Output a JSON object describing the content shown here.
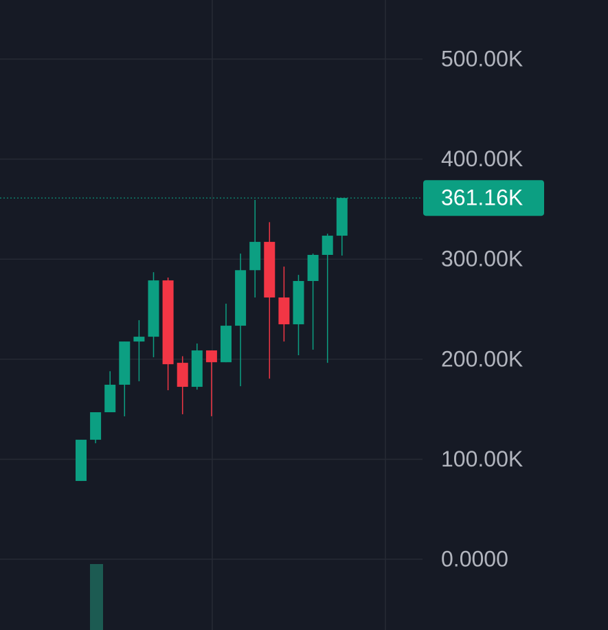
{
  "chart_data": {
    "type": "candlestick",
    "categories": [
      null,
      null,
      null,
      null,
      null,
      null,
      null,
      null,
      null,
      null,
      null,
      null,
      null,
      null,
      null,
      null,
      null,
      null,
      null
    ],
    "open": [
      78300,
      119500,
      147000,
      174500,
      217700,
      222500,
      278800,
      196400,
      172400,
      208800,
      197000,
      233500,
      289000,
      317300,
      261700,
      234900,
      278200,
      304300,
      323500
    ],
    "high": [
      119500,
      147000,
      188000,
      217700,
      239000,
      287000,
      281600,
      203000,
      215700,
      208800,
      255500,
      305600,
      359200,
      337000,
      292600,
      284300,
      305600,
      325500,
      361160
    ],
    "low": [
      78300,
      116000,
      147000,
      142900,
      178000,
      202000,
      169000,
      145000,
      169600,
      143000,
      197000,
      173000,
      261700,
      180600,
      217700,
      204000,
      209500,
      196400,
      303600
    ],
    "close": [
      119500,
      147000,
      174500,
      217700,
      222500,
      278800,
      195000,
      172400,
      208800,
      197000,
      233500,
      289000,
      317300,
      261700,
      234900,
      278200,
      304300,
      323500,
      361160
    ],
    "up_color": "#0c9f82",
    "down_color": "#f23645",
    "ylim": [
      -70700,
      559100
    ],
    "yticks": [
      {
        "value": 0,
        "label": "0.0000"
      },
      {
        "value": 100000,
        "label": "100.00K"
      },
      {
        "value": 200000,
        "label": "200.00K"
      },
      {
        "value": 300000,
        "label": "300.00K"
      },
      {
        "value": 400000,
        "label": "400.00K"
      },
      {
        "value": 500000,
        "label": "500.00K"
      }
    ],
    "grid": true,
    "last_price": {
      "value": 361160,
      "label": "361.16K"
    }
  }
}
